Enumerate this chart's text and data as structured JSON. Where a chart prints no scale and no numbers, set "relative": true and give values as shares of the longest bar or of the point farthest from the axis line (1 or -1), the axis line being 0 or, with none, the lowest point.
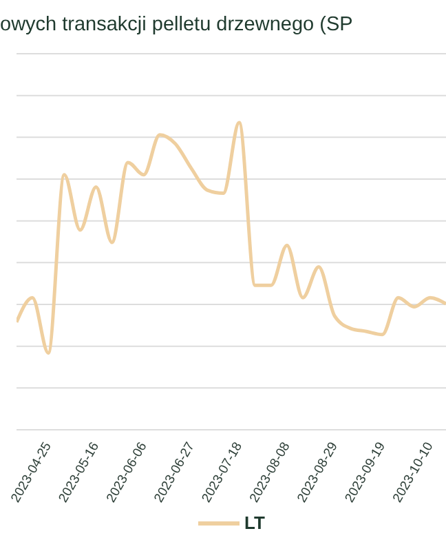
{
  "chart_data": {
    "type": "line",
    "title": "owych transakcji pelletu drzewnego (SP",
    "relative": true,
    "grid": "y",
    "legend": "bottom",
    "marker": "none",
    "line_style": "solid",
    "x": [
      "2023-04-11",
      "2023-04-18",
      "2023-04-25",
      "2023-05-02",
      "2023-05-09",
      "2023-05-16",
      "2023-05-23",
      "2023-05-30",
      "2023-06-06",
      "2023-06-13",
      "2023-06-20",
      "2023-06-27",
      "2023-07-04",
      "2023-07-11",
      "2023-07-18",
      "2023-07-25",
      "2023-08-01",
      "2023-08-08",
      "2023-08-15",
      "2023-08-22",
      "2023-08-29",
      "2023-09-05",
      "2023-09-12",
      "2023-09-19",
      "2023-09-26",
      "2023-10-03",
      "2023-10-10",
      "2023-10-17"
    ],
    "xlim": [
      "2023-04-11",
      "2023-10-17"
    ],
    "xticks": [
      "2023-04-25",
      "2023-05-16",
      "2023-06-06",
      "2023-06-27",
      "2023-07-18",
      "2023-08-08",
      "2023-08-29",
      "2023-09-19",
      "2023-10-10"
    ],
    "series": [
      {
        "name": "LT",
        "color": "#efcf9f",
        "values": [
          0.35,
          0.43,
          0.25,
          0.83,
          0.65,
          0.79,
          0.61,
          0.87,
          0.83,
          0.96,
          0.93,
          0.85,
          0.78,
          0.77,
          1,
          0.47,
          0.47,
          0.6,
          0.43,
          0.53,
          0.37,
          0.33,
          0.32,
          0.31,
          0.43,
          0.4,
          0.43,
          0.41
        ]
      }
    ]
  }
}
